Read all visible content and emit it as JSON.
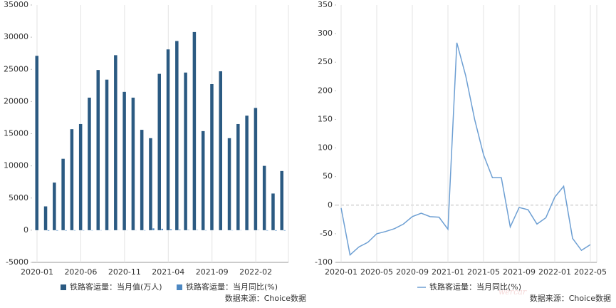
{
  "chart_data": [
    {
      "type": "bar",
      "categories": [
        "2020-01",
        null,
        null,
        null,
        null,
        "2020-06",
        null,
        null,
        null,
        null,
        "2020-11",
        null,
        null,
        null,
        null,
        "2021-04",
        null,
        null,
        null,
        null,
        "2021-09",
        null,
        null,
        null,
        null,
        "2022-02",
        null,
        null,
        null
      ],
      "series": [
        {
          "name": "铁路客运量：当月值(万人)",
          "color": "#2b5a82",
          "values": [
            27100,
            3700,
            7400,
            11100,
            15700,
            16500,
            20600,
            24900,
            23400,
            27200,
            21500,
            20600,
            15600,
            14300,
            24300,
            28100,
            29400,
            24500,
            30800,
            15400,
            22700,
            24700,
            14300,
            16500,
            17800,
            19000,
            10000,
            5700,
            9200
          ]
        },
        {
          "name": "铁路客运量：当月同比(%)",
          "color": "#4d88c2",
          "values": [
            -5,
            -87,
            -73,
            -65,
            -50,
            -46,
            -41,
            -33,
            -20,
            -14,
            -20,
            -21,
            -42,
            284,
            226,
            150,
            88,
            48,
            48,
            -38,
            -4,
            -8,
            -33,
            -22,
            14,
            33,
            -58,
            -79,
            -69
          ]
        }
      ],
      "ylim": [
        -5000,
        35000
      ],
      "yticks": [
        -5000,
        0,
        5000,
        10000,
        15000,
        20000,
        25000,
        30000,
        35000
      ],
      "source": "数据来源：Choice数据"
    },
    {
      "type": "line",
      "categories": [
        "2020-01",
        null,
        null,
        null,
        "2020-05",
        null,
        null,
        null,
        "2020-09",
        null,
        null,
        null,
        "2021-01",
        null,
        null,
        null,
        "2021-05",
        null,
        null,
        null,
        "2021-09",
        null,
        null,
        null,
        "2022-01",
        null,
        null,
        null,
        "2022-05"
      ],
      "series": [
        {
          "name": "铁路客运量：当月同比(%)",
          "color": "#6d9fd3",
          "values": [
            -5,
            -87,
            -73,
            -65,
            -50,
            -46,
            -41,
            -33,
            -20,
            -14,
            -20,
            -21,
            -42,
            284,
            226,
            150,
            88,
            48,
            48,
            -38,
            -4,
            -8,
            -33,
            -22,
            14,
            33,
            -58,
            -79,
            -69
          ]
        }
      ],
      "ylim": [
        -100,
        350
      ],
      "yticks": [
        -100,
        -50,
        0,
        50,
        100,
        150,
        200,
        250,
        300,
        350
      ],
      "source": "数据来源：Choice数据",
      "watermark": "wercar"
    }
  ]
}
